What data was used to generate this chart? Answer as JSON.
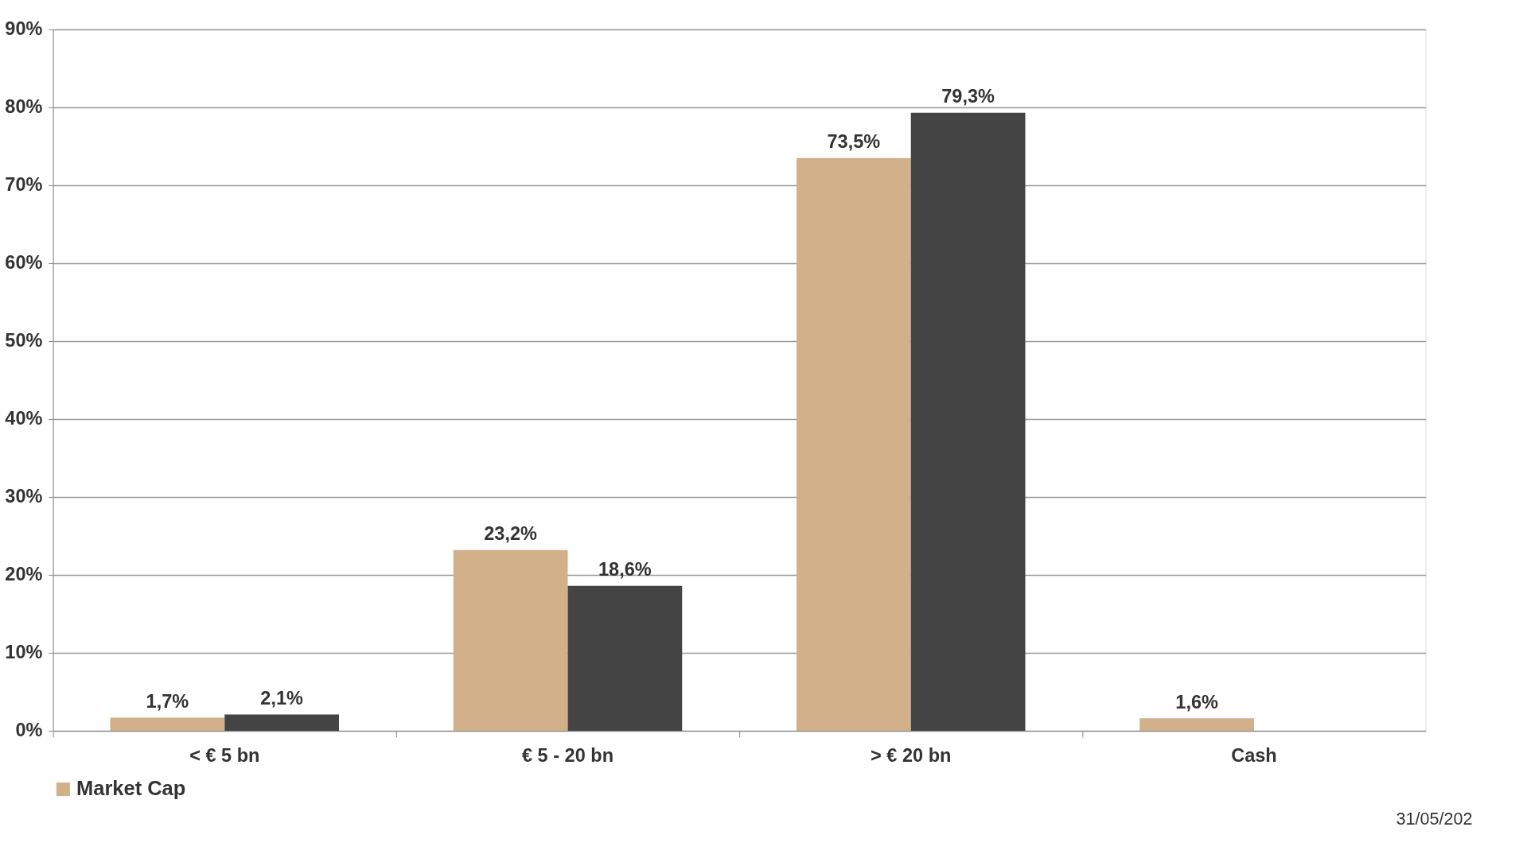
{
  "chart_data": {
    "type": "bar",
    "categories": [
      "< € 5 bn",
      "€ 5 - 20 bn",
      "> € 20 bn",
      "Cash"
    ],
    "series": [
      {
        "name": "Market Cap",
        "color": "#d2b08a",
        "values": [
          1.7,
          23.2,
          73.5,
          1.6
        ],
        "value_labels": [
          "1,7%",
          "23,2%",
          "73,5%",
          "1,6%"
        ]
      },
      {
        "color": "#444444",
        "values": [
          2.1,
          18.6,
          79.3,
          null
        ],
        "value_labels": [
          "2,1%",
          "18,6%",
          "79,3%",
          null
        ]
      }
    ],
    "ylim": [
      0,
      90
    ],
    "yticks": [
      {
        "value": 0,
        "label": "0%"
      },
      {
        "value": 10,
        "label": "10%"
      },
      {
        "value": 20,
        "label": "20%"
      },
      {
        "value": 30,
        "label": "30%"
      },
      {
        "value": 40,
        "label": "40%"
      },
      {
        "value": 50,
        "label": "50%"
      },
      {
        "value": 60,
        "label": "60%"
      },
      {
        "value": 70,
        "label": "70%"
      },
      {
        "value": 80,
        "label": "80%"
      },
      {
        "value": 90,
        "label": "90%"
      }
    ],
    "grid": "y",
    "legend": "bottom",
    "annotations": [
      "31/05/202"
    ]
  }
}
